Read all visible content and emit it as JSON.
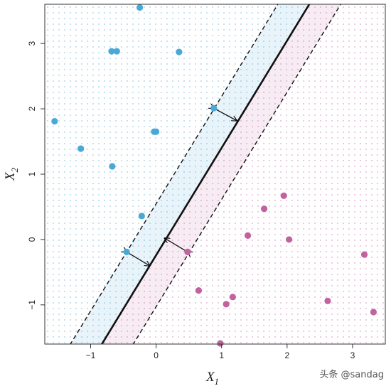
{
  "chart_data": {
    "type": "scatter",
    "title": "",
    "xlabel": "X",
    "xlabel_sub": "1",
    "ylabel": "X",
    "ylabel_sub": "2",
    "xlim": [
      -1.7,
      3.5
    ],
    "ylim": [
      -1.6,
      3.6
    ],
    "xticks": [
      -1,
      0,
      1,
      2,
      3
    ],
    "yticks": [
      -1,
      0,
      1,
      2,
      3
    ],
    "xtick_labels": [
      "−1",
      "0",
      "1",
      "2",
      "3"
    ],
    "ytick_labels": [
      "−1",
      "0",
      "1",
      "2",
      "3"
    ],
    "grid": false,
    "background": "dotted grid (decision regions)",
    "series": [
      {
        "color": "#4aa8d8",
        "points": [
          [
            -0.25,
            3.55
          ],
          [
            -0.68,
            2.88
          ],
          [
            -0.6,
            2.88
          ],
          [
            0.35,
            2.87
          ],
          [
            -1.55,
            1.81
          ],
          [
            -0.03,
            1.65
          ],
          [
            0.0,
            1.65
          ],
          [
            -1.15,
            1.39
          ],
          [
            -0.67,
            1.12
          ],
          [
            0.88,
            2.01
          ],
          [
            -0.22,
            0.36
          ],
          [
            -0.45,
            -0.19
          ]
        ]
      },
      {
        "color": "#c0639f",
        "points": [
          [
            1.95,
            0.67
          ],
          [
            1.65,
            0.47
          ],
          [
            1.4,
            0.06
          ],
          [
            2.03,
            0.0
          ],
          [
            0.48,
            -0.19
          ],
          [
            3.18,
            -0.23
          ],
          [
            0.65,
            -0.78
          ],
          [
            1.17,
            -0.88
          ],
          [
            1.07,
            -0.99
          ],
          [
            2.62,
            -0.94
          ],
          [
            3.32,
            -1.11
          ],
          [
            0.98,
            -1.59
          ]
        ]
      }
    ],
    "hyperplane": {
      "p1": [
        -0.95,
        -1.8
      ],
      "p2": [
        2.4,
        3.7
      ]
    },
    "margin_upper": {
      "p1": [
        -1.43,
        -1.8
      ],
      "p2": [
        1.92,
        3.7
      ]
    },
    "margin_lower": {
      "p1": [
        -0.47,
        -1.8
      ],
      "p2": [
        2.88,
        3.7
      ]
    },
    "arrows": [
      {
        "from": [
          0.88,
          2.01
        ],
        "to": [
          1.23,
          1.82
        ]
      },
      {
        "from": [
          -0.45,
          -0.19
        ],
        "to": [
          -0.1,
          -0.4
        ]
      },
      {
        "from": [
          0.48,
          -0.19
        ],
        "to": [
          0.13,
          0.02
        ]
      }
    ],
    "colors": {
      "blue": "#4aa8d8",
      "pink": "#c0639f",
      "line": "#111111",
      "frame": "#333333"
    }
  },
  "watermark": "头条 @sandag"
}
